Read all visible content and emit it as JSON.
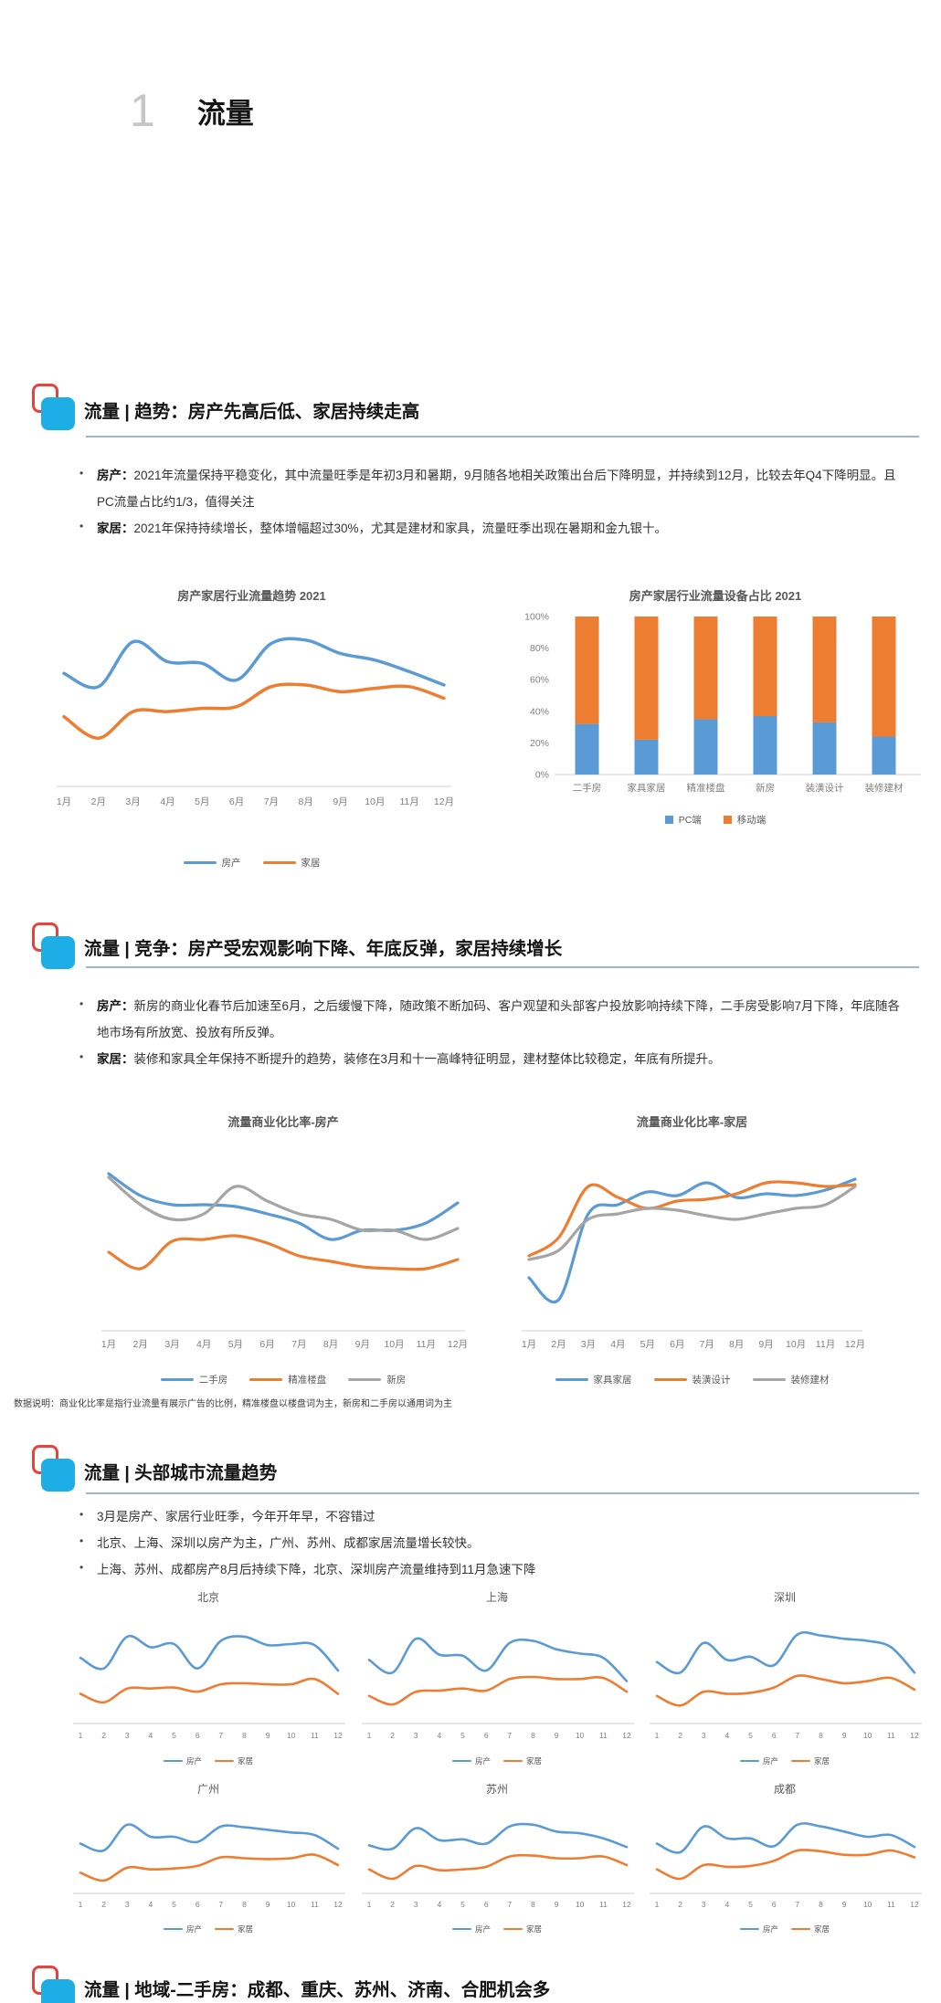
{
  "title": {
    "number": "1",
    "label": "流量"
  },
  "colors": {
    "series_blue": "#5B9BD5",
    "series_orange": "#ED7D31",
    "series_gray": "#A5A5A5",
    "icon_blue": "#1CAEE4",
    "icon_red": "#E8423E",
    "rule": "#9FB6C6",
    "axis_line": "#D9D9D9",
    "tick_text": "#7F7F7F"
  },
  "sections": {
    "trend": {
      "header": "流量 | 趋势：房产先高后低、家居持续走高",
      "bullets": [
        {
          "lead": "房产：",
          "text": "2021年流量保持平稳变化，其中流量旺季是年初3月和暑期，9月随各地相关政策出台后下降明显，并持续到12月，比较去年Q4下降明显。且PC流量占比约1/3，值得关注"
        },
        {
          "lead": "家居：",
          "text": "2021年保持持续增长，整体增幅超过30%，尤其是建材和家具，流量旺季出现在暑期和金九银十。"
        }
      ]
    },
    "competition": {
      "header": "流量 | 竞争：房产受宏观影响下降、年底反弹，家居持续增长",
      "bullets": [
        {
          "lead": "房产：",
          "text": "新房的商业化春节后加速至6月，之后缓慢下降，随政策不断加码、客户观望和头部客户投放影响持续下降，二手房受影响7月下降，年底随各地市场有所放宽、投放有所反弹。"
        },
        {
          "lead": "家居：",
          "text": "装修和家具全年保持不断提升的趋势，装修在3月和十一高峰特征明显，建材整体比较稳定，年底有所提升。"
        }
      ],
      "note": "数据说明：商业化比率是指行业流量有展示广告的比例，精准楼盘以楼盘词为主，新房和二手房以通用词为主"
    },
    "cities": {
      "header": "流量 | 头部城市流量趋势",
      "bullets": [
        {
          "lead": "",
          "text": "3月是房产、家居行业旺季，今年开年早，不容错过"
        },
        {
          "lead": "",
          "text": "北京、上海、深圳以房产为主，广州、苏州、成都家居流量增长较快。"
        },
        {
          "lead": "",
          "text": "上海、苏州、成都房产8月后持续下降，北京、深圳房产流量维持到11月急速下降"
        }
      ]
    },
    "region": {
      "header": "流量 | 地域-二手房：成都、重庆、苏州、济南、合肥机会多"
    }
  },
  "chart_data": [
    {
      "type": "line",
      "title": "房产家居行业流量趋势 2021",
      "x": [
        "1月",
        "2月",
        "3月",
        "4月",
        "5月",
        "6月",
        "7月",
        "8月",
        "9月",
        "10月",
        "11月",
        "12月"
      ],
      "ylim": [
        0,
        100
      ],
      "grid": false,
      "legend": "bottom",
      "series": [
        {
          "name": "房产",
          "color": "#5B9BD5",
          "values": [
            68,
            60,
            87,
            75,
            74,
            64,
            86,
            88,
            80,
            76,
            69,
            61
          ]
        },
        {
          "name": "家居",
          "color": "#ED7D31",
          "values": [
            42,
            29,
            45,
            45,
            47,
            48,
            60,
            61,
            57,
            59,
            60,
            53
          ]
        }
      ]
    },
    {
      "type": "bar",
      "stacked_percent": true,
      "title": "房产家居行业流量设备占比 2021",
      "categories": [
        "二手房",
        "家具家居",
        "精准楼盘",
        "新房",
        "装潢设计",
        "装修建材"
      ],
      "y_ticks": [
        "0%",
        "20%",
        "40%",
        "60%",
        "80%",
        "100%"
      ],
      "ylim": [
        0,
        100
      ],
      "legend": "bottom",
      "series": [
        {
          "name": "PC端",
          "color": "#5B9BD5",
          "values": [
            32,
            22,
            35,
            37,
            33,
            24
          ]
        },
        {
          "name": "移动端",
          "color": "#ED7D31",
          "values": [
            68,
            78,
            65,
            63,
            67,
            76
          ]
        }
      ]
    },
    {
      "type": "line",
      "title": "流量商业化比率-房产",
      "x": [
        "1月",
        "2月",
        "3月",
        "4月",
        "5月",
        "6月",
        "7月",
        "8月",
        "9月",
        "10月",
        "11月",
        "12月"
      ],
      "ylim": [
        0,
        100
      ],
      "grid": false,
      "legend": "bottom",
      "series": [
        {
          "name": "二手房",
          "color": "#5B9BD5",
          "values": [
            86,
            74,
            69,
            69,
            68,
            64,
            59,
            50,
            55,
            55,
            59,
            70
          ]
        },
        {
          "name": "精准楼盘",
          "color": "#ED7D31",
          "values": [
            43,
            34,
            49,
            50,
            52,
            48,
            41,
            38,
            35,
            34,
            34,
            39
          ]
        },
        {
          "name": "新房",
          "color": "#A5A5A5",
          "values": [
            84,
            69,
            61,
            64,
            79,
            71,
            64,
            61,
            55,
            55,
            50,
            56
          ]
        }
      ]
    },
    {
      "type": "line",
      "title": "流量商业化比率-家居",
      "x": [
        "1月",
        "2月",
        "3月",
        "4月",
        "5月",
        "6月",
        "7月",
        "8月",
        "9月",
        "10月",
        "11月",
        "12月"
      ],
      "ylim": [
        0,
        100
      ],
      "grid": false,
      "legend": "bottom",
      "series": [
        {
          "name": "家具家居",
          "color": "#5B9BD5",
          "values": [
            29,
            17,
            64,
            69,
            76,
            74,
            81,
            73,
            75,
            74,
            77,
            83
          ]
        },
        {
          "name": "装潢设计",
          "color": "#ED7D31",
          "values": [
            41,
            51,
            79,
            73,
            67,
            71,
            72,
            75,
            81,
            81,
            79,
            80
          ]
        },
        {
          "name": "装修建材",
          "color": "#A5A5A5",
          "values": [
            39,
            44,
            61,
            64,
            67,
            66,
            63,
            61,
            64,
            67,
            69,
            79
          ]
        }
      ]
    },
    {
      "type": "line",
      "title": "北京",
      "x": [
        "1",
        "2",
        "3",
        "4",
        "5",
        "6",
        "7",
        "8",
        "9",
        "10",
        "11",
        "12"
      ],
      "ylim": [
        0,
        100
      ],
      "legend": "bottom",
      "series": [
        {
          "name": "房产",
          "color": "#5B9BD5",
          "values": [
            62,
            52,
            82,
            72,
            75,
            52,
            78,
            82,
            74,
            75,
            74,
            50
          ]
        },
        {
          "name": "家居",
          "color": "#ED7D31",
          "values": [
            28,
            20,
            33,
            33,
            34,
            30,
            37,
            38,
            37,
            37,
            42,
            28
          ]
        }
      ]
    },
    {
      "type": "line",
      "title": "上海",
      "x": [
        "1",
        "2",
        "3",
        "4",
        "5",
        "6",
        "7",
        "8",
        "9",
        "10",
        "11",
        "12"
      ],
      "ylim": [
        0,
        100
      ],
      "legend": "bottom",
      "series": [
        {
          "name": "房产",
          "color": "#5B9BD5",
          "values": [
            60,
            48,
            80,
            65,
            64,
            50,
            76,
            78,
            70,
            66,
            62,
            40
          ]
        },
        {
          "name": "家居",
          "color": "#ED7D31",
          "values": [
            26,
            18,
            30,
            31,
            33,
            31,
            42,
            44,
            42,
            42,
            43,
            30
          ]
        }
      ]
    },
    {
      "type": "line",
      "title": "深圳",
      "x": [
        "1",
        "2",
        "3",
        "4",
        "5",
        "6",
        "7",
        "8",
        "9",
        "10",
        "11",
        "12"
      ],
      "ylim": [
        0,
        100
      ],
      "legend": "bottom",
      "series": [
        {
          "name": "房产",
          "color": "#5B9BD5",
          "values": [
            58,
            48,
            76,
            60,
            63,
            55,
            84,
            83,
            80,
            78,
            72,
            48
          ]
        },
        {
          "name": "家居",
          "color": "#ED7D31",
          "values": [
            26,
            17,
            30,
            28,
            29,
            34,
            45,
            42,
            38,
            40,
            43,
            32
          ]
        }
      ]
    },
    {
      "type": "line",
      "title": "广州",
      "x": [
        "1",
        "2",
        "3",
        "4",
        "5",
        "6",
        "7",
        "8",
        "9",
        "10",
        "11",
        "12"
      ],
      "ylim": [
        0,
        100
      ],
      "legend": "bottom",
      "series": [
        {
          "name": "房产",
          "color": "#5B9BD5",
          "values": [
            58,
            50,
            80,
            66,
            66,
            60,
            78,
            77,
            74,
            71,
            68,
            52
          ]
        },
        {
          "name": "家居",
          "color": "#ED7D31",
          "values": [
            24,
            15,
            30,
            28,
            29,
            32,
            42,
            41,
            40,
            41,
            45,
            33
          ]
        }
      ]
    },
    {
      "type": "line",
      "title": "苏州",
      "x": [
        "1",
        "2",
        "3",
        "4",
        "5",
        "6",
        "7",
        "8",
        "9",
        "10",
        "11",
        "12"
      ],
      "ylim": [
        0,
        100
      ],
      "legend": "bottom",
      "series": [
        {
          "name": "房产",
          "color": "#5B9BD5",
          "values": [
            56,
            52,
            76,
            62,
            63,
            58,
            78,
            80,
            72,
            70,
            64,
            54
          ]
        },
        {
          "name": "家居",
          "color": "#ED7D31",
          "values": [
            28,
            17,
            32,
            27,
            28,
            31,
            43,
            44,
            41,
            41,
            43,
            33
          ]
        }
      ]
    },
    {
      "type": "line",
      "title": "成都",
      "x": [
        "1",
        "2",
        "3",
        "4",
        "5",
        "6",
        "7",
        "8",
        "9",
        "10",
        "11",
        "12"
      ],
      "ylim": [
        0,
        100
      ],
      "legend": "bottom",
      "series": [
        {
          "name": "房产",
          "color": "#5B9BD5",
          "values": [
            58,
            48,
            78,
            64,
            64,
            55,
            80,
            78,
            72,
            66,
            68,
            54
          ]
        },
        {
          "name": "家居",
          "color": "#ED7D31",
          "values": [
            28,
            17,
            33,
            31,
            32,
            38,
            50,
            49,
            45,
            45,
            50,
            42
          ]
        }
      ]
    }
  ]
}
